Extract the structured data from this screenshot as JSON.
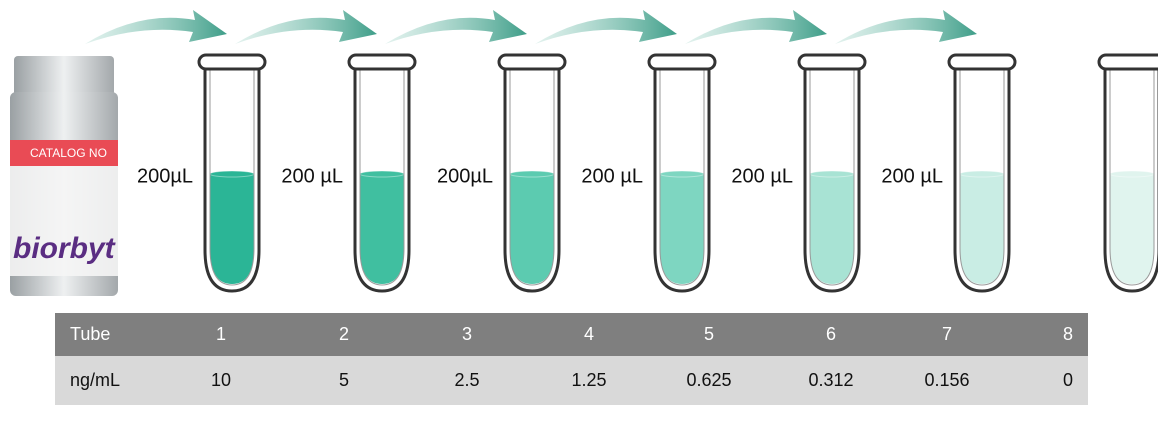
{
  "vial": {
    "catalog": "CATALOG NO",
    "brand": "biorbyt"
  },
  "transfers": [
    "200µL",
    "200 µL",
    "200µL",
    "200 µL",
    "200 µL",
    "200 µL"
  ],
  "table": {
    "header": [
      "Tube",
      "1",
      "2",
      "3",
      "4",
      "5",
      "6",
      "7",
      "8"
    ],
    "rows": [
      [
        "ng/mL",
        "10",
        "5",
        "2.5",
        "1.25",
        "0.625",
        "0.312",
        "0.156",
        "0"
      ]
    ]
  }
}
